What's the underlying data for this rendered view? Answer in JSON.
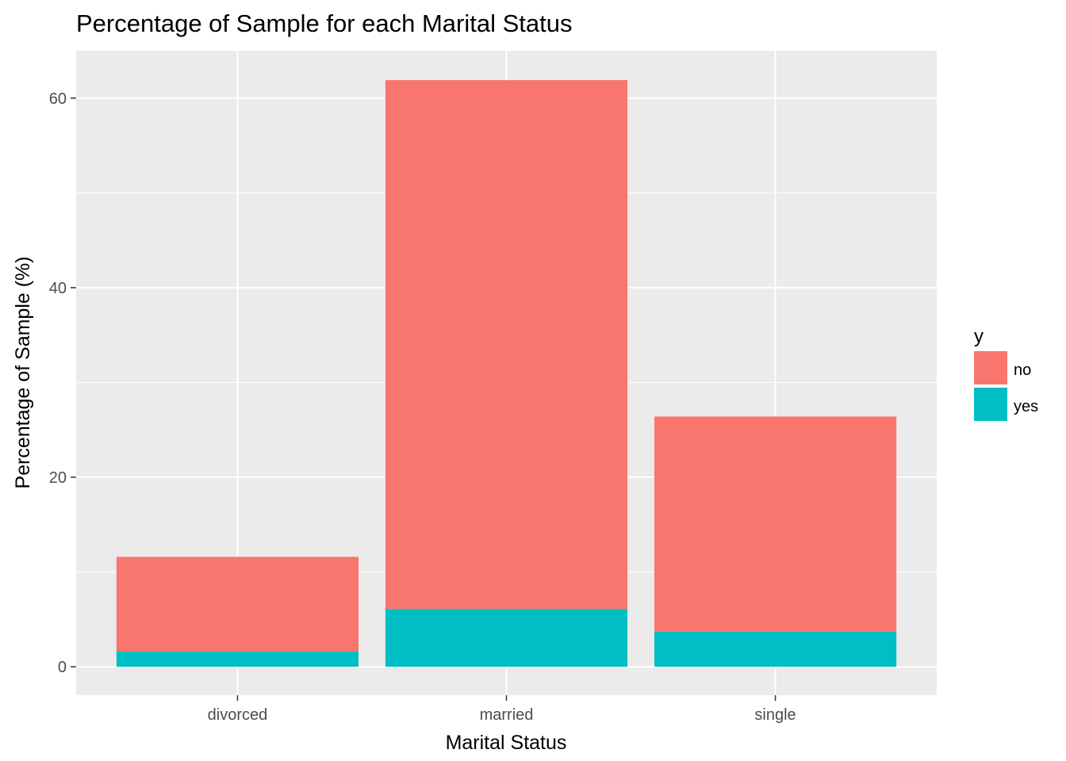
{
  "chart_data": {
    "type": "bar",
    "stacked": true,
    "title": "Percentage of Sample for each Marital Status",
    "xlabel": "Marital Status",
    "ylabel": "Percentage of Sample (%)",
    "categories": [
      "divorced",
      "married",
      "single"
    ],
    "series": [
      {
        "name": "yes",
        "color": "#00BFC4",
        "values": [
          1.6,
          6.1,
          3.7
        ]
      },
      {
        "name": "no",
        "color": "#F8766D",
        "values": [
          10.0,
          55.8,
          22.7
        ]
      }
    ],
    "ylim": [
      -3,
      65
    ],
    "yticks": [
      0,
      20,
      40,
      60
    ],
    "ytick_labels": [
      "0",
      "20",
      "40",
      "60"
    ],
    "legend": {
      "title": "y",
      "position": "right",
      "entries": [
        {
          "label": "no",
          "color": "#F8766D"
        },
        {
          "label": "yes",
          "color": "#00BFC4"
        }
      ]
    },
    "panel_background": "#EBEBEB",
    "grid": true
  }
}
